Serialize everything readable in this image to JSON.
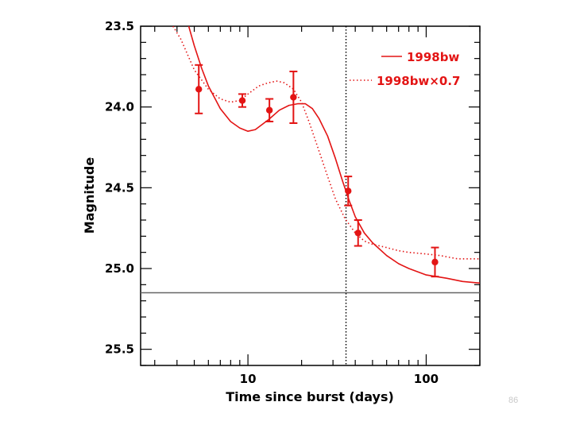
{
  "slide": {
    "number": "86"
  },
  "chart_data": {
    "type": "line",
    "title": "",
    "xlabel": "Time since burst (days)",
    "ylabel": "Magnitude",
    "xscale": "log",
    "xlim": [
      2.5,
      200
    ],
    "ylim": [
      25.6,
      23.5
    ],
    "y_inverted": true,
    "xticks": [
      {
        "value": 10,
        "label": "10"
      },
      {
        "value": 100,
        "label": "100"
      }
    ],
    "yticks": [
      {
        "value": 23.5,
        "label": "23.5"
      },
      {
        "value": 24.0,
        "label": "24.0"
      },
      {
        "value": 24.5,
        "label": "24.5"
      },
      {
        "value": 25.0,
        "label": "25.0"
      },
      {
        "value": 25.5,
        "label": "25.5"
      }
    ],
    "legend_position": "top-right",
    "colors": {
      "accent": "#e31414",
      "axis": "#000000",
      "reference": "#666666"
    },
    "series": [
      {
        "name": "1998bw",
        "style": "solid",
        "x": [
          4.6,
          5.0,
          5.5,
          6.0,
          7.0,
          8.0,
          9.0,
          10.0,
          11.0,
          13.0,
          15.0,
          17.0,
          19.0,
          21.0,
          23.0,
          25.0,
          28.0,
          31.0,
          34.0,
          37.0,
          40.0,
          45.0,
          50.0,
          60.0,
          70.0,
          80.0,
          100.0,
          130.0,
          160.0,
          200.0
        ],
        "y": [
          23.48,
          23.62,
          23.76,
          23.87,
          24.01,
          24.09,
          24.13,
          24.15,
          24.14,
          24.08,
          24.02,
          23.99,
          23.98,
          23.98,
          24.01,
          24.07,
          24.18,
          24.32,
          24.46,
          24.58,
          24.68,
          24.78,
          24.84,
          24.92,
          24.97,
          25.0,
          25.04,
          25.06,
          25.08,
          25.09
        ]
      },
      {
        "name": "1998bw×0.7",
        "style": "dotted",
        "x": [
          3.8,
          4.2,
          5.0,
          6.0,
          7.0,
          8.0,
          9.0,
          10.0,
          11.5,
          13.0,
          14.5,
          16.0,
          18.0,
          20.0,
          22.0,
          25.0,
          28.0,
          31.0,
          35.0,
          40.0,
          45.0,
          50.0,
          60.0,
          70.0,
          80.0,
          100.0,
          120.0,
          150.0,
          200.0
        ],
        "y": [
          23.5,
          23.58,
          23.77,
          23.89,
          23.95,
          23.97,
          23.96,
          23.92,
          23.87,
          23.85,
          23.84,
          23.85,
          23.89,
          23.97,
          24.09,
          24.27,
          24.43,
          24.57,
          24.69,
          24.78,
          24.83,
          24.85,
          24.87,
          24.89,
          24.9,
          24.91,
          24.92,
          24.94,
          24.94
        ]
      }
    ],
    "observations": [
      {
        "x": 5.3,
        "y": 23.89,
        "yerr_low": 23.74,
        "yerr_high": 24.04
      },
      {
        "x": 9.3,
        "y": 23.96,
        "yerr_low": 23.92,
        "yerr_high": 24.0
      },
      {
        "x": 13.2,
        "y": 24.02,
        "yerr_low": 23.95,
        "yerr_high": 24.09
      },
      {
        "x": 18.0,
        "y": 23.94,
        "yerr_low": 23.78,
        "yerr_high": 24.1
      },
      {
        "x": 36.5,
        "y": 24.52,
        "yerr_low": 24.43,
        "yerr_high": 24.61
      },
      {
        "x": 41.5,
        "y": 24.78,
        "yerr_low": 24.7,
        "yerr_high": 24.86
      },
      {
        "x": 112.0,
        "y": 24.96,
        "yerr_low": 24.87,
        "yerr_high": 25.05
      }
    ],
    "reference_lines": [
      {
        "orientation": "horizontal",
        "y": 25.15,
        "style": "solid"
      },
      {
        "orientation": "vertical",
        "x": 35.5,
        "style": "dotted"
      }
    ]
  }
}
